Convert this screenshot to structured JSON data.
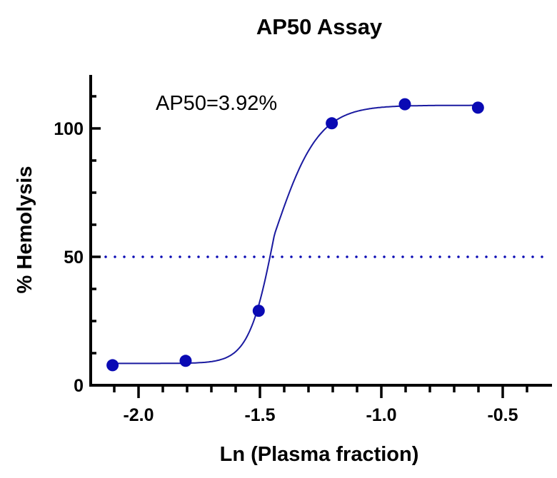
{
  "chart_data": {
    "type": "scatter",
    "title": "AP50 Assay",
    "xlabel": "Ln (Plasma fraction)",
    "ylabel": "% Hemolysis",
    "xlim": [
      -2.2,
      -0.32
    ],
    "ylim": [
      0,
      120
    ],
    "x_ticks": [
      -2.0,
      -1.5,
      -1.0,
      -0.5
    ],
    "x_tick_labels": [
      "-2.0",
      "-1.5",
      "-1.0",
      "-0.5"
    ],
    "y_ticks": [
      0,
      50,
      100
    ],
    "y_tick_labels": [
      "0",
      "50",
      "100"
    ],
    "grid": false,
    "points": [
      {
        "x": -2.107,
        "y": 7.8
      },
      {
        "x": -1.806,
        "y": 9.5
      },
      {
        "x": -1.505,
        "y": 29.0
      },
      {
        "x": -1.204,
        "y": 102.0
      },
      {
        "x": -0.903,
        "y": 109.4
      },
      {
        "x": -0.602,
        "y": 108.1
      }
    ],
    "fit": "sigmoidal curve",
    "reference_line": {
      "y": 50,
      "style": "dotted"
    },
    "annotation": "AP50=3.92%",
    "color": "#0a0ab4",
    "curve_color": "#1a1aa0"
  }
}
